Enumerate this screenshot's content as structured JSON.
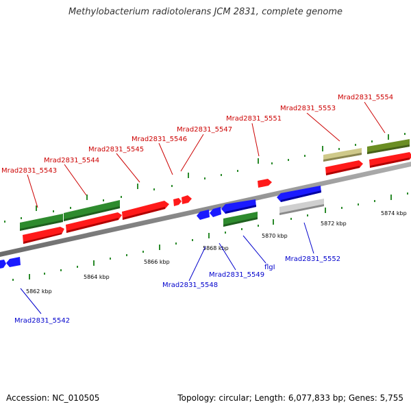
{
  "title": "Methylobacterium radiotolerans JCM 2831, complete genome",
  "footer": {
    "accession": "Accession: NC_010505",
    "topology": "Topology: circular; Length: 6,077,833 bp; Genes: 5,755"
  },
  "colors": {
    "forward_gene_label": "#cc0000",
    "reverse_gene_label": "#0000cc",
    "tick": "#2a8a2a",
    "backbone": "#8c8c8c",
    "red": "#ff1a1a",
    "green": "#2e8b2e",
    "blue": "#1a1aff",
    "olive": "#6b8e23",
    "khaki": "#bdb76b",
    "gray": "#c8c8c8"
  },
  "scale_labels": [
    "5862 kbp",
    "5864 kbp",
    "5866 kbp",
    "5868 kbp",
    "5870 kbp",
    "5872 kbp",
    "5874 kbp"
  ],
  "gene_labels_forward": [
    "Mrad2831_5543",
    "Mrad2831_5544",
    "Mrad2831_5545",
    "Mrad2831_5546",
    "Mrad2831_5547",
    "Mrad2831_5551",
    "Mrad2831_5553",
    "Mrad2831_5554"
  ],
  "gene_labels_reverse": [
    "Mrad2831_5542",
    "Mrad2831_5548",
    "Mrad2831_5549",
    "flgI",
    "Mrad2831_5552"
  ]
}
